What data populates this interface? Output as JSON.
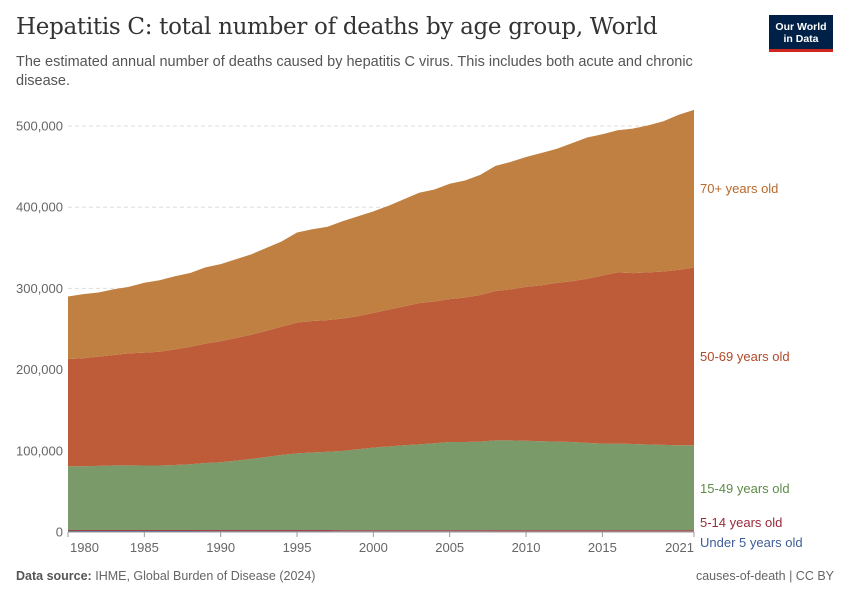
{
  "header": {
    "title": "Hepatitis C: total number of deaths by age group, World",
    "subtitle": "The estimated annual number of deaths caused by hepatitis C virus. This includes both acute and chronic disease.",
    "logo_text": "Our World in Data"
  },
  "footer": {
    "source_label": "Data source:",
    "source_text": "IHME, Global Burden of Disease (2024)",
    "right_text": "causes-of-death | CC BY"
  },
  "chart_data": {
    "type": "area",
    "stacked": true,
    "title": "Hepatitis C: total number of deaths by age group, World",
    "xlim": [
      1980,
      2021
    ],
    "ylim": [
      0,
      500000
    ],
    "x_ticks": [
      1980,
      1985,
      1990,
      1995,
      2000,
      2005,
      2010,
      2015,
      2021
    ],
    "y_ticks": [
      0,
      100000,
      200000,
      300000,
      400000,
      500000
    ],
    "y_tick_labels": [
      "0",
      "100,000",
      "200,000",
      "300,000",
      "400,000",
      "500,000"
    ],
    "grid": "horizontal dashed",
    "legend": "right, inline labels",
    "x": [
      1980,
      1981,
      1982,
      1983,
      1984,
      1985,
      1986,
      1987,
      1988,
      1989,
      1990,
      1991,
      1992,
      1993,
      1994,
      1995,
      1996,
      1997,
      1998,
      1999,
      2000,
      2001,
      2002,
      2003,
      2004,
      2005,
      2006,
      2007,
      2008,
      2009,
      2010,
      2011,
      2012,
      2013,
      2014,
      2015,
      2016,
      2017,
      2018,
      2019,
      2020,
      2021
    ],
    "series": [
      {
        "name": "Under 5 years old",
        "color": "#4C6A9C",
        "label_color": "#3F5D9A",
        "values": [
          1300,
          1290,
          1270,
          1250,
          1240,
          1220,
          1200,
          1190,
          1170,
          1150,
          1140,
          1120,
          1100,
          1080,
          1070,
          1050,
          1030,
          1020,
          1000,
          990,
          970,
          950,
          940,
          920,
          900,
          890,
          870,
          860,
          840,
          820,
          810,
          800,
          790,
          780,
          770,
          760,
          750,
          740,
          730,
          720,
          710,
          700
        ]
      },
      {
        "name": "5-14 years old",
        "color": "#A2404A",
        "label_color": "#9A2A3A",
        "values": [
          1200,
          1210,
          1220,
          1230,
          1240,
          1250,
          1260,
          1270,
          1280,
          1290,
          1300,
          1310,
          1320,
          1330,
          1340,
          1350,
          1360,
          1370,
          1380,
          1390,
          1400,
          1410,
          1420,
          1430,
          1440,
          1450,
          1460,
          1470,
          1480,
          1490,
          1500,
          1510,
          1520,
          1530,
          1540,
          1550,
          1560,
          1570,
          1580,
          1590,
          1600,
          1610
        ]
      },
      {
        "name": "15-49 years old",
        "color": "#7A9A6A",
        "label_color": "#5E8C48",
        "values": [
          78500,
          78500,
          79000,
          79500,
          79500,
          79500,
          79500,
          80000,
          81000,
          82500,
          83500,
          85500,
          87500,
          90000,
          92500,
          94500,
          95500,
          96500,
          97500,
          99500,
          101500,
          103000,
          104500,
          105500,
          107000,
          108500,
          108500,
          109000,
          110500,
          110500,
          110000,
          109500,
          109000,
          108500,
          107500,
          106500,
          106500,
          106000,
          105500,
          105000,
          104500,
          104500
        ]
      },
      {
        "name": "50-69 years old",
        "color": "#BE5B39",
        "label_color": "#B14A2A",
        "values": [
          132000,
          133000,
          134500,
          136000,
          138000,
          139000,
          140000,
          142500,
          144500,
          147000,
          149000,
          151000,
          153000,
          155500,
          158000,
          161000,
          162000,
          162000,
          163000,
          164000,
          166000,
          168500,
          171000,
          174000,
          174500,
          176000,
          178000,
          180500,
          184000,
          186000,
          189500,
          192000,
          195500,
          198000,
          202000,
          207000,
          211000,
          210500,
          212000,
          213500,
          216000,
          219000
        ]
      },
      {
        "name": "70+ years old",
        "color": "#C08041",
        "label_color": "#B8682A",
        "values": [
          77000,
          79000,
          79000,
          81000,
          82000,
          86000,
          88000,
          90000,
          91000,
          94000,
          95000,
          97000,
          99000,
          102000,
          105000,
          111000,
          113000,
          115000,
          120000,
          123000,
          125000,
          128000,
          132000,
          136000,
          138000,
          142000,
          144000,
          148000,
          154000,
          157000,
          160000,
          163000,
          165000,
          170000,
          174000,
          174000,
          175000,
          178000,
          181000,
          185000,
          191000,
          194000
        ]
      }
    ]
  }
}
